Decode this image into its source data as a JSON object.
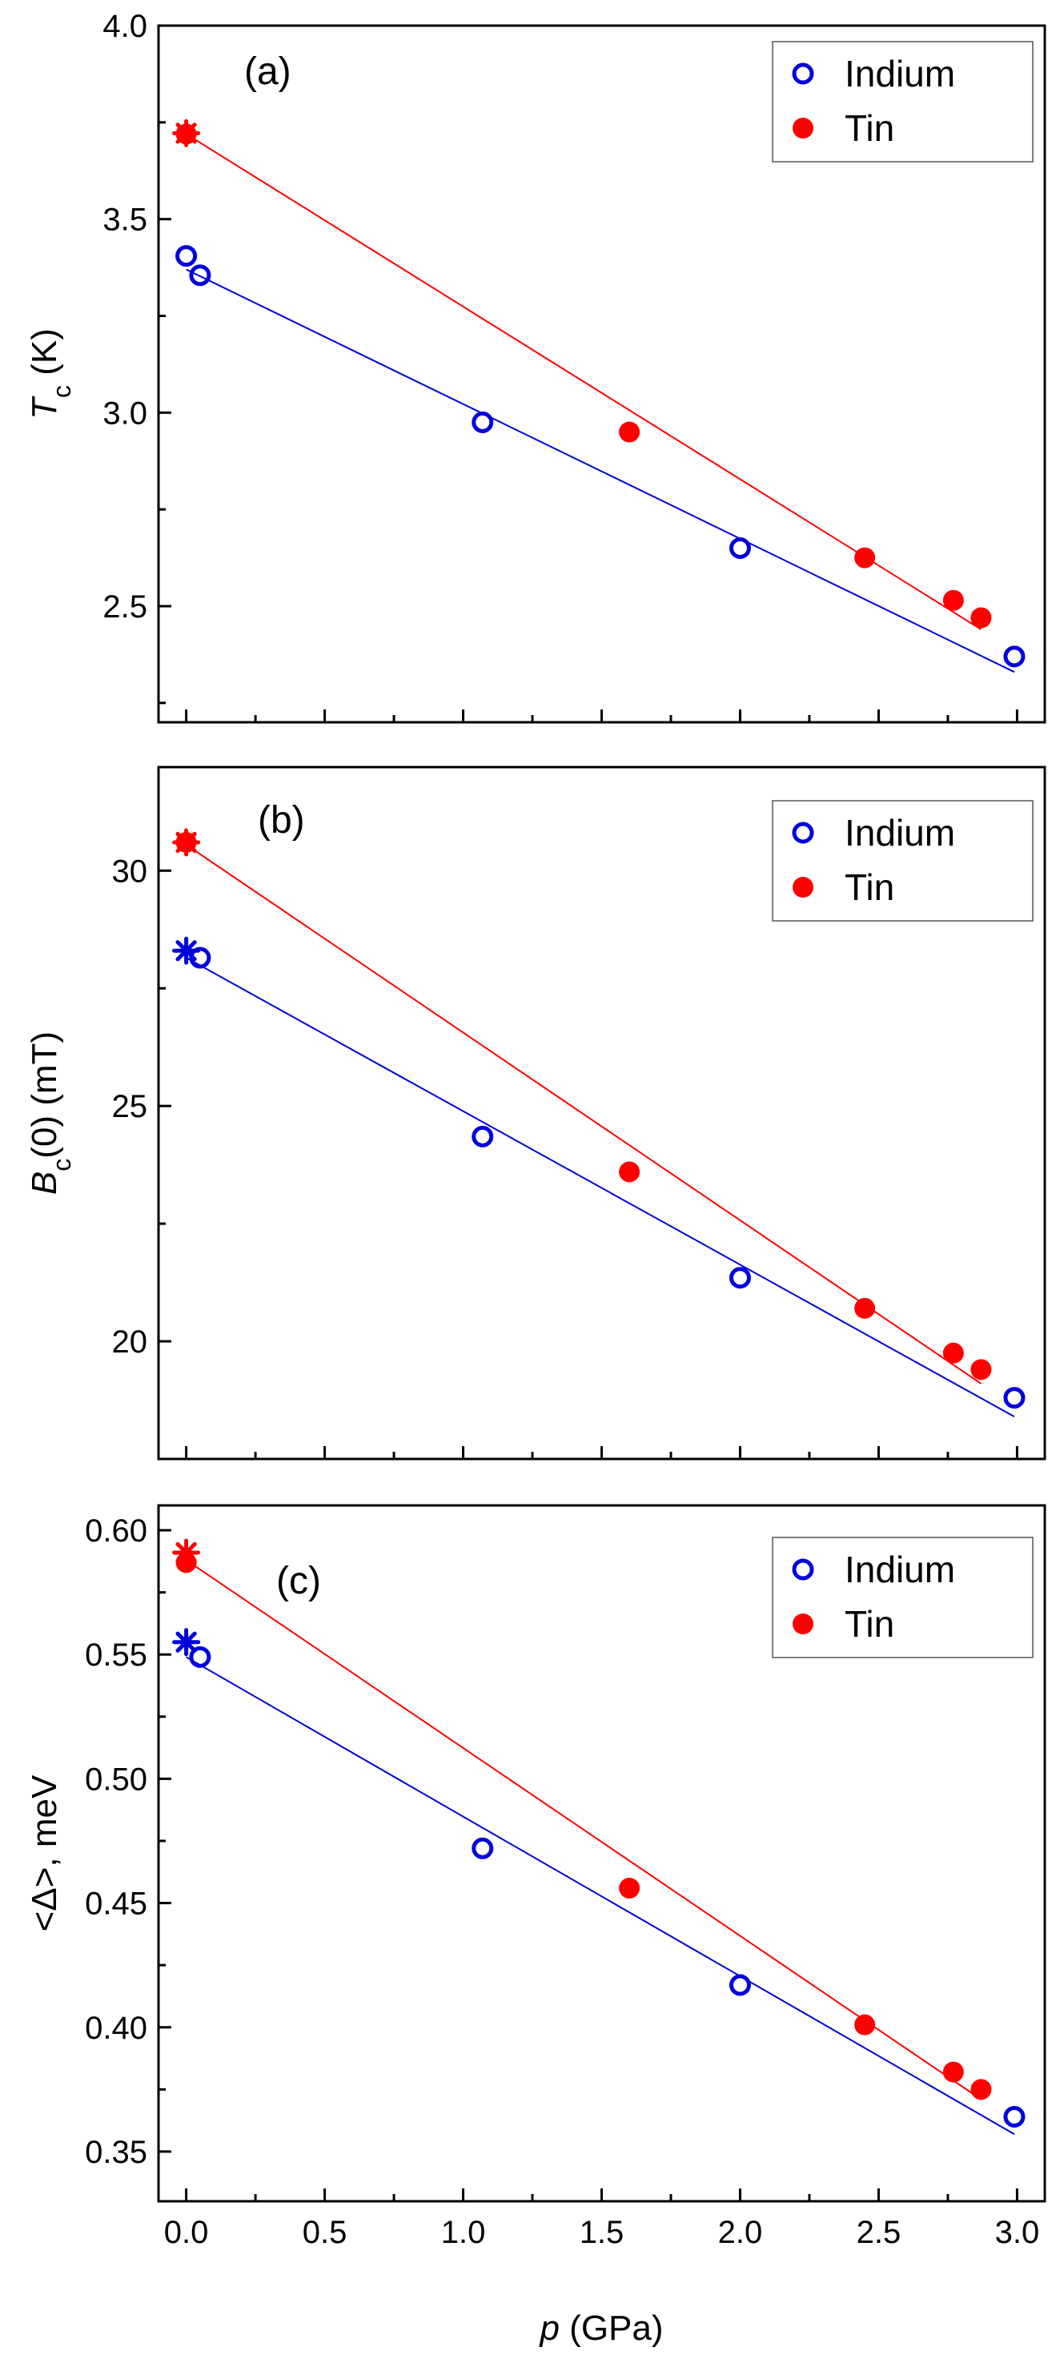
{
  "chart_data": [
    {
      "type": "scatter",
      "panel_label": "(a)",
      "ylabel_main": "T",
      "ylabel_sub": "c",
      "ylabel_unit": " (K)",
      "xlim": [
        -0.1,
        3.1
      ],
      "ylim": [
        2.2,
        4.0
      ],
      "yticks": [
        2.5,
        3.0,
        3.5,
        4.0
      ],
      "ytick_labels": [
        "2.5",
        "3.0",
        "3.5",
        "4.0"
      ],
      "xticks": [
        0,
        0.5,
        1.0,
        1.5,
        2.0,
        2.5,
        3.0
      ],
      "legend_position": "top-right",
      "series": [
        {
          "name": "Indium",
          "color": "#0000dd",
          "marker": "open-circle",
          "points": [
            [
              0.0,
              3.405
            ],
            [
              0.05,
              3.355
            ],
            [
              1.07,
              2.975
            ],
            [
              2.0,
              2.65
            ],
            [
              2.99,
              2.37
            ]
          ],
          "fit": [
            [
              0.0,
              3.37
            ],
            [
              2.99,
              2.33
            ]
          ]
        },
        {
          "name": "Tin",
          "color": "#ff0000",
          "marker": "filled-circle",
          "points": [
            [
              0.0,
              3.72
            ],
            [
              1.6,
              2.95
            ],
            [
              2.45,
              2.625
            ],
            [
              2.77,
              2.515
            ],
            [
              2.87,
              2.47
            ]
          ],
          "fit": [
            [
              0.0,
              3.72
            ],
            [
              2.87,
              2.44
            ]
          ],
          "star": [
            0.0,
            3.722
          ]
        }
      ]
    },
    {
      "type": "scatter",
      "panel_label": "(b)",
      "ylabel_main": "B",
      "ylabel_sub": "c",
      "ylabel_unit": "(0) (mT)",
      "xlim": [
        -0.1,
        3.1
      ],
      "ylim": [
        17.5,
        32.2
      ],
      "yticks": [
        20,
        25,
        30
      ],
      "ytick_labels": [
        "20",
        "25",
        "30"
      ],
      "xticks": [
        0,
        0.5,
        1.0,
        1.5,
        2.0,
        2.5,
        3.0
      ],
      "legend_position": "top-right",
      "series": [
        {
          "name": "Indium",
          "color": "#0000dd",
          "marker": "open-circle",
          "points": [
            [
              0.05,
              28.15
            ],
            [
              1.07,
              24.35
            ],
            [
              2.0,
              21.35
            ],
            [
              2.99,
              18.8
            ]
          ],
          "fit": [
            [
              0.0,
              28.15
            ],
            [
              2.99,
              18.4
            ]
          ],
          "star": [
            0.0,
            28.3
          ]
        },
        {
          "name": "Tin",
          "color": "#ff0000",
          "marker": "filled-circle",
          "points": [
            [
              0.0,
              30.6
            ],
            [
              1.6,
              23.6
            ],
            [
              2.45,
              20.7
            ],
            [
              2.77,
              19.75
            ],
            [
              2.87,
              19.4
            ]
          ],
          "fit": [
            [
              0.0,
              30.55
            ],
            [
              2.87,
              19.1
            ]
          ],
          "star": [
            0.0,
            30.6
          ]
        }
      ]
    },
    {
      "type": "scatter",
      "panel_label": "(c)",
      "ylabel_main": "<Δ>, meV",
      "ylabel_sub": "",
      "ylabel_unit": "",
      "xlabel_main": "p",
      "xlabel_unit": " (GPa)",
      "xlim": [
        -0.1,
        3.1
      ],
      "ylim": [
        0.33,
        0.61
      ],
      "yticks": [
        0.35,
        0.4,
        0.45,
        0.5,
        0.55,
        0.6
      ],
      "ytick_labels": [
        "0.35",
        "0.40",
        "0.45",
        "0.50",
        "0.55",
        "0.60"
      ],
      "xticks": [
        0,
        0.5,
        1.0,
        1.5,
        2.0,
        2.5,
        3.0
      ],
      "xtick_labels": [
        "0.0",
        "0.5",
        "1.0",
        "1.5",
        "2.0",
        "2.5",
        "3.0"
      ],
      "legend_position": "top-right",
      "series": [
        {
          "name": "Indium",
          "color": "#0000dd",
          "marker": "open-circle",
          "points": [
            [
              0.05,
              0.549
            ],
            [
              1.07,
              0.472
            ],
            [
              2.0,
              0.417
            ],
            [
              2.99,
              0.364
            ]
          ],
          "fit": [
            [
              0.0,
              0.549
            ],
            [
              2.99,
              0.357
            ]
          ],
          "star": [
            0.0,
            0.555
          ]
        },
        {
          "name": "Tin",
          "color": "#ff0000",
          "marker": "filled-circle",
          "points": [
            [
              0.0,
              0.587
            ],
            [
              1.6,
              0.456
            ],
            [
              2.45,
              0.401
            ],
            [
              2.77,
              0.382
            ],
            [
              2.87,
              0.375
            ]
          ],
          "fit": [
            [
              0.0,
              0.588
            ],
            [
              2.87,
              0.371
            ]
          ],
          "star": [
            0.0,
            0.591
          ]
        }
      ]
    }
  ]
}
